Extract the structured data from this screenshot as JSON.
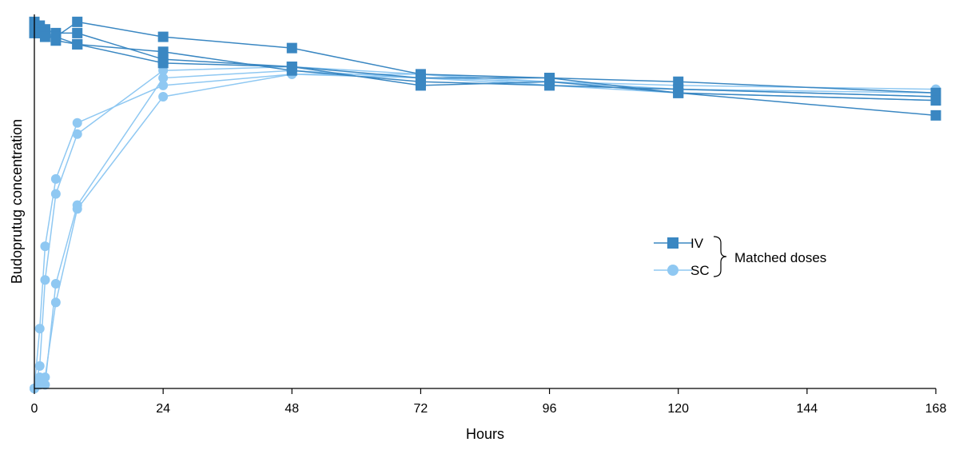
{
  "chart_data": {
    "type": "line",
    "xlabel": "Hours",
    "ylabel": "Budoprutug concentration",
    "xlim": [
      0,
      168
    ],
    "ylim": [
      0,
      100
    ],
    "xticks": [
      0,
      24,
      48,
      72,
      96,
      120,
      144,
      168
    ],
    "x": [
      0,
      1,
      2,
      4,
      8,
      24,
      48,
      72,
      96,
      120,
      168
    ],
    "grid": false,
    "legend_position": "center-right",
    "legend_group_label": "Matched doses",
    "colors": {
      "IV": "#3a87c2",
      "SC": "#8fc8f2"
    },
    "series": [
      {
        "name": "IV",
        "group": "IV",
        "marker": "square",
        "values": [
          98,
          97,
          96,
          95,
          95,
          88,
          86,
          83,
          83,
          82,
          79
        ]
      },
      {
        "name": "IV",
        "group": "IV",
        "marker": "square",
        "values": [
          97,
          96,
          95,
          93,
          92,
          90,
          85,
          82,
          81,
          80,
          78
        ]
      },
      {
        "name": "IV",
        "group": "IV",
        "marker": "square",
        "values": [
          96,
          95,
          95,
          94,
          98,
          94,
          91,
          84,
          83,
          79,
          77
        ]
      },
      {
        "name": "IV",
        "group": "IV",
        "marker": "square",
        "values": [
          95,
          95,
          94,
          94,
          92,
          87,
          86,
          81,
          82,
          79,
          73
        ]
      },
      {
        "name": "SC",
        "group": "SC",
        "marker": "circle",
        "values": [
          0,
          16,
          38,
          56,
          71,
          81,
          84,
          84,
          82,
          80,
          79
        ]
      },
      {
        "name": "SC",
        "group": "SC",
        "marker": "circle",
        "values": [
          0,
          3,
          1,
          28,
          49,
          83,
          85,
          83,
          82,
          81,
          80
        ]
      },
      {
        "name": "SC",
        "group": "SC",
        "marker": "circle",
        "values": [
          0,
          6,
          29,
          52,
          68,
          85,
          86,
          84,
          81,
          80,
          78
        ]
      },
      {
        "name": "SC",
        "group": "SC",
        "marker": "circle",
        "values": [
          0,
          1,
          3,
          23,
          48,
          78,
          84,
          83,
          81,
          79,
          77
        ]
      }
    ],
    "legend": [
      {
        "label": "IV",
        "marker": "square"
      },
      {
        "label": "SC",
        "marker": "circle"
      }
    ]
  }
}
